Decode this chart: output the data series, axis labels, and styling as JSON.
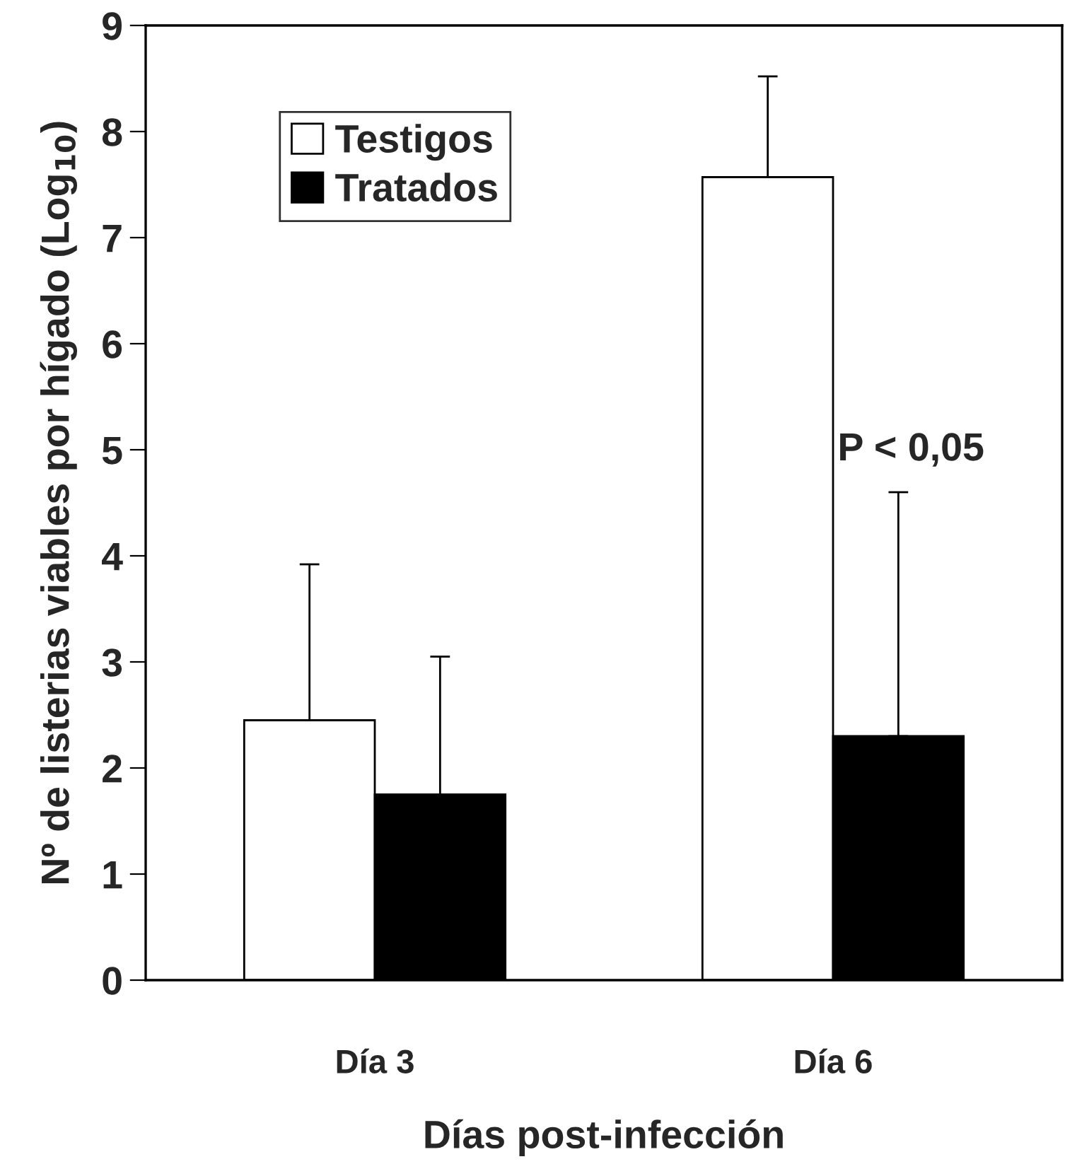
{
  "chart_data": {
    "type": "bar",
    "xlabel": "Días post-infección",
    "ylabel": "Nº de listerias viables por hígado (Log$_{10}$)",
    "categories": [
      "Día 3",
      "Día 6"
    ],
    "series": [
      {
        "name": "Testigos",
        "color": "#ffffff",
        "values": [
          2.45,
          7.57
        ],
        "errors": [
          [
            2.45,
            3.92
          ],
          [
            7.57,
            8.52
          ]
        ]
      },
      {
        "name": "Tratados",
        "color": "#000000",
        "values": [
          1.75,
          2.3
        ],
        "errors": [
          [
            1.75,
            3.05
          ],
          [
            2.3,
            4.6
          ]
        ]
      }
    ],
    "ylim": [
      0,
      9
    ],
    "yticks": [
      0,
      1,
      2,
      3,
      4,
      5,
      6,
      7,
      8,
      9
    ],
    "grid": false,
    "legend": "top left",
    "annotations": [
      "P < 0,05"
    ]
  }
}
